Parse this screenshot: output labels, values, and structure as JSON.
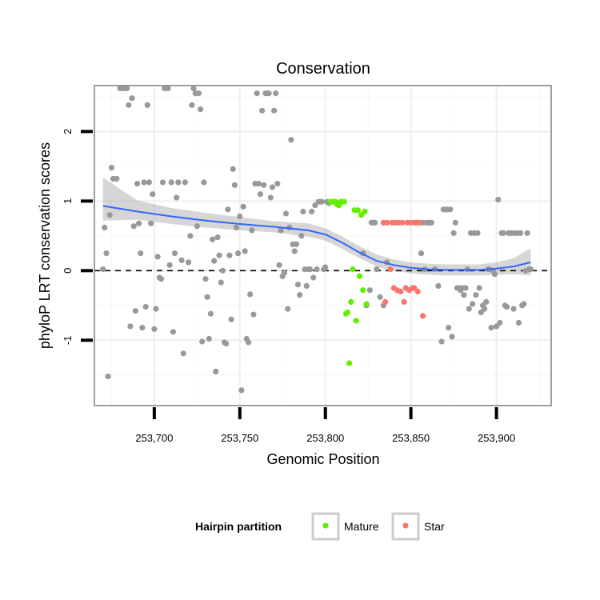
{
  "chart_data": {
    "type": "scatter",
    "title": "Conservation",
    "xlabel": "Genomic Position",
    "ylabel": "phyloP LRT conservation scores",
    "xlim": [
      253665,
      253932
    ],
    "ylim": [
      -1.94,
      2.66
    ],
    "x_ticks": [
      {
        "value": 253700,
        "label": "253,700"
      },
      {
        "value": 253750,
        "label": "253,750"
      },
      {
        "value": 253800,
        "label": "253,800"
      },
      {
        "value": 253850,
        "label": "253,850"
      },
      {
        "value": 253900,
        "label": "253,900"
      }
    ],
    "y_ticks": [
      {
        "value": -1,
        "label": "-1"
      },
      {
        "value": 0,
        "label": "0"
      },
      {
        "value": 1,
        "label": "1"
      },
      {
        "value": 2,
        "label": "2"
      }
    ],
    "grid": true,
    "reference_line": {
      "y": 0,
      "style": "dashed"
    },
    "smooth": {
      "color": "#3366FF",
      "x": [
        253670,
        253690,
        253710,
        253730,
        253750,
        253770,
        253790,
        253800,
        253810,
        253820,
        253830,
        253840,
        253850,
        253860,
        253870,
        253880,
        253890,
        253900,
        253910,
        253920
      ],
      "y": [
        0.93,
        0.85,
        0.78,
        0.72,
        0.67,
        0.63,
        0.58,
        0.52,
        0.4,
        0.26,
        0.14,
        0.08,
        0.04,
        0.02,
        0.01,
        0.01,
        0.01,
        0.03,
        0.06,
        0.12
      ],
      "lower": [
        0.72,
        0.73,
        0.67,
        0.62,
        0.58,
        0.55,
        0.49,
        0.43,
        0.31,
        0.18,
        0.06,
        0.0,
        -0.04,
        -0.06,
        -0.07,
        -0.07,
        -0.07,
        -0.06,
        -0.05,
        -0.07
      ],
      "upper": [
        1.34,
        1.01,
        0.9,
        0.83,
        0.77,
        0.71,
        0.68,
        0.61,
        0.49,
        0.35,
        0.23,
        0.16,
        0.12,
        0.1,
        0.09,
        0.09,
        0.09,
        0.12,
        0.18,
        0.32
      ]
    },
    "series": [
      {
        "name": "Other",
        "color": "#999999",
        "in_legend": false,
        "points": [
          [
            253670,
            0.02
          ],
          [
            253671,
            0.62
          ],
          [
            253672,
            0.25
          ],
          [
            253673,
            -1.52
          ],
          [
            253674,
            0.8
          ],
          [
            253675,
            1.48
          ],
          [
            253676,
            1.32
          ],
          [
            253678,
            1.32
          ],
          [
            253680,
            2.62
          ],
          [
            253682,
            2.62
          ],
          [
            253684,
            2.62
          ],
          [
            253685,
            2.38
          ],
          [
            253686,
            -0.8
          ],
          [
            253687,
            2.48
          ],
          [
            253688,
            0.64
          ],
          [
            253689,
            -0.58
          ],
          [
            253690,
            1.25
          ],
          [
            253691,
            0.68
          ],
          [
            253692,
            0.25
          ],
          [
            253693,
            -0.82
          ],
          [
            253694,
            1.27
          ],
          [
            253695,
            -0.52
          ],
          [
            253696,
            2.38
          ],
          [
            253697,
            1.27
          ],
          [
            253698,
            0.68
          ],
          [
            253699,
            1.1
          ],
          [
            253700,
            -0.84
          ],
          [
            253701,
            -0.55
          ],
          [
            253702,
            0.2
          ],
          [
            253703,
            -0.1
          ],
          [
            253704,
            -0.12
          ],
          [
            253705,
            1.27
          ],
          [
            253706,
            2.62
          ],
          [
            253708,
            2.62
          ],
          [
            253709,
            0.08
          ],
          [
            253710,
            1.27
          ],
          [
            253711,
            -0.88
          ],
          [
            253712,
            0.25
          ],
          [
            253713,
            1.05
          ],
          [
            253714,
            1.27
          ],
          [
            253716,
            0.15
          ],
          [
            253717,
            -1.19
          ],
          [
            253718,
            1.27
          ],
          [
            253720,
            0.12
          ],
          [
            253721,
            0.5
          ],
          [
            253722,
            2.38
          ],
          [
            253723,
            2.62
          ],
          [
            253724,
            2.55
          ],
          [
            253725,
            0.64
          ],
          [
            253726,
            2.55
          ],
          [
            253727,
            2.32
          ],
          [
            253728,
            -1.02
          ],
          [
            253729,
            1.27
          ],
          [
            253730,
            -0.12
          ],
          [
            253731,
            -0.38
          ],
          [
            253732,
            -0.98
          ],
          [
            253733,
            -0.62
          ],
          [
            253734,
            0.45
          ],
          [
            253735,
            0.14
          ],
          [
            253736,
            -1.45
          ],
          [
            253737,
            0.48
          ],
          [
            253738,
            0.22
          ],
          [
            253739,
            -0.17
          ],
          [
            253740,
            0.0
          ],
          [
            253741,
            -1.03
          ],
          [
            253742,
            -1.05
          ],
          [
            253743,
            0.88
          ],
          [
            253744,
            0.22
          ],
          [
            253745,
            -0.7
          ],
          [
            253746,
            1.46
          ],
          [
            253747,
            1.23
          ],
          [
            253748,
            0.62
          ],
          [
            253749,
            0.25
          ],
          [
            253750,
            0.78
          ],
          [
            253751,
            -1.72
          ],
          [
            253752,
            0.92
          ],
          [
            253753,
            0.28
          ],
          [
            253754,
            -0.98
          ],
          [
            253755,
            -1.03
          ],
          [
            253756,
            -0.34
          ],
          [
            253757,
            0.58
          ],
          [
            253758,
            -0.63
          ],
          [
            253759,
            1.25
          ],
          [
            253760,
            2.55
          ],
          [
            253761,
            1.25
          ],
          [
            253762,
            1.1
          ],
          [
            253763,
            2.3
          ],
          [
            253764,
            1.23
          ],
          [
            253765,
            2.55
          ],
          [
            253766,
            2.55
          ],
          [
            253767,
            2.55
          ],
          [
            253768,
            1.05
          ],
          [
            253769,
            1.2
          ],
          [
            253770,
            2.3
          ],
          [
            253771,
            2.55
          ],
          [
            253772,
            1.25
          ],
          [
            253773,
            0.08
          ],
          [
            253774,
            0.58
          ],
          [
            253775,
            -0.08
          ],
          [
            253776,
            -0.03
          ],
          [
            253777,
            0.82
          ],
          [
            253778,
            -0.55
          ],
          [
            253779,
            0.62
          ],
          [
            253780,
            1.88
          ],
          [
            253781,
            0.38
          ],
          [
            253782,
            0.28
          ],
          [
            253783,
            0.38
          ],
          [
            253784,
            -0.2
          ],
          [
            253785,
            -0.35
          ],
          [
            253786,
            0.5
          ],
          [
            253787,
            0.85
          ],
          [
            253788,
            0.02
          ],
          [
            253789,
            -0.22
          ],
          [
            253790,
            0.02
          ],
          [
            253791,
            0.02
          ],
          [
            253792,
            0.85
          ],
          [
            253793,
            -0.1
          ],
          [
            253794,
            0.94
          ],
          [
            253795,
            0.02
          ],
          [
            253796,
            0.99
          ],
          [
            253797,
            0.99
          ],
          [
            253798,
            0.99
          ],
          [
            253799,
            0.02
          ],
          [
            253800,
            0.05
          ],
          [
            253801,
            0.99
          ],
          [
            253802,
            0.97
          ],
          [
            253822,
            0.25
          ],
          [
            253824,
            -0.5
          ],
          [
            253826,
            -0.28
          ],
          [
            253827,
            0.69
          ],
          [
            253828,
            0.69
          ],
          [
            253829,
            0.69
          ],
          [
            253830,
            0.02
          ],
          [
            253832,
            -0.38
          ],
          [
            253834,
            -0.5
          ],
          [
            253836,
            0.12
          ],
          [
            253852,
            0.69
          ],
          [
            253853,
            0.69
          ],
          [
            253854,
            0.69
          ],
          [
            253856,
            0.25
          ],
          [
            253857,
            0.69
          ],
          [
            253858,
            0.02
          ],
          [
            253859,
            0.69
          ],
          [
            253860,
            0.69
          ],
          [
            253861,
            0.69
          ],
          [
            253862,
            0.69
          ],
          [
            253864,
            0.02
          ],
          [
            253866,
            -0.22
          ],
          [
            253868,
            -1.02
          ],
          [
            253869,
            0.88
          ],
          [
            253870,
            0.88
          ],
          [
            253871,
            0.88
          ],
          [
            253872,
            -0.82
          ],
          [
            253873,
            0.88
          ],
          [
            253874,
            -0.95
          ],
          [
            253875,
            0.54
          ],
          [
            253876,
            0.69
          ],
          [
            253877,
            -0.25
          ],
          [
            253878,
            -0.25
          ],
          [
            253879,
            -0.28
          ],
          [
            253880,
            -0.25
          ],
          [
            253881,
            -0.35
          ],
          [
            253882,
            -0.25
          ],
          [
            253883,
            0.02
          ],
          [
            253884,
            -0.55
          ],
          [
            253885,
            0.54
          ],
          [
            253886,
            -0.48
          ],
          [
            253887,
            0.54
          ],
          [
            253888,
            -0.35
          ],
          [
            253889,
            0.54
          ],
          [
            253890,
            -0.25
          ],
          [
            253891,
            -0.6
          ],
          [
            253892,
            -0.5
          ],
          [
            253893,
            -0.55
          ],
          [
            253894,
            -0.45
          ],
          [
            253895,
            0.02
          ],
          [
            253896,
            0.02
          ],
          [
            253897,
            -0.82
          ],
          [
            253898,
            0.0
          ],
          [
            253899,
            -0.05
          ],
          [
            253900,
            -0.8
          ],
          [
            253901,
            1.02
          ],
          [
            253902,
            -0.75
          ],
          [
            253903,
            0.54
          ],
          [
            253904,
            0.54
          ],
          [
            253905,
            -0.5
          ],
          [
            253906,
            -0.52
          ],
          [
            253907,
            0.54
          ],
          [
            253908,
            0.54
          ],
          [
            253909,
            0.54
          ],
          [
            253910,
            -0.55
          ],
          [
            253911,
            0.54
          ],
          [
            253912,
            0.54
          ],
          [
            253913,
            -0.75
          ],
          [
            253914,
            0.54
          ],
          [
            253915,
            -0.5
          ],
          [
            253916,
            -0.48
          ],
          [
            253917,
            0.0
          ],
          [
            253918,
            0.54
          ],
          [
            253919,
            0.02
          ],
          [
            253920,
            0.02
          ]
        ]
      },
      {
        "name": "Mature",
        "color": "#66EE00",
        "in_legend": true,
        "points": [
          [
            253803,
            0.99
          ],
          [
            253804,
            0.99
          ],
          [
            253805,
            0.99
          ],
          [
            253806,
            0.99
          ],
          [
            253807,
            0.95
          ],
          [
            253808,
            0.94
          ],
          [
            253809,
            0.99
          ],
          [
            253810,
            0.99
          ],
          [
            253811,
            0.99
          ],
          [
            253812,
            -0.62
          ],
          [
            253813,
            -0.6
          ],
          [
            253814,
            -1.33
          ],
          [
            253815,
            -0.45
          ],
          [
            253816,
            0.02
          ],
          [
            253817,
            0.87
          ],
          [
            253818,
            -0.72
          ],
          [
            253819,
            0.87
          ],
          [
            253820,
            -0.08
          ],
          [
            253821,
            0.8
          ],
          [
            253822,
            -0.28
          ],
          [
            253823,
            0.85
          ],
          [
            253824,
            -0.48
          ]
        ]
      },
      {
        "name": "Star",
        "color": "#F8766D",
        "in_legend": true,
        "points": [
          [
            253834,
            0.69
          ],
          [
            253835,
            -0.45
          ],
          [
            253836,
            0.69
          ],
          [
            253838,
            0.02
          ],
          [
            253839,
            0.69
          ],
          [
            253840,
            -0.25
          ],
          [
            253841,
            0.69
          ],
          [
            253842,
            -0.28
          ],
          [
            253843,
            0.69
          ],
          [
            253844,
            -0.3
          ],
          [
            253845,
            0.69
          ],
          [
            253846,
            -0.45
          ],
          [
            253847,
            -0.25
          ],
          [
            253848,
            0.69
          ],
          [
            253849,
            -0.28
          ],
          [
            253850,
            0.69
          ],
          [
            253851,
            -0.25
          ],
          [
            253852,
            -0.25
          ],
          [
            253853,
            0.69
          ],
          [
            253854,
            -0.3
          ],
          [
            253855,
            0.69
          ],
          [
            253857,
            -0.65
          ]
        ]
      }
    ],
    "legend": {
      "title": "Hairpin partition",
      "placement": "bottom",
      "items": [
        {
          "label": "Mature",
          "color": "#66EE00"
        },
        {
          "label": "Star",
          "color": "#F8766D"
        }
      ]
    }
  }
}
